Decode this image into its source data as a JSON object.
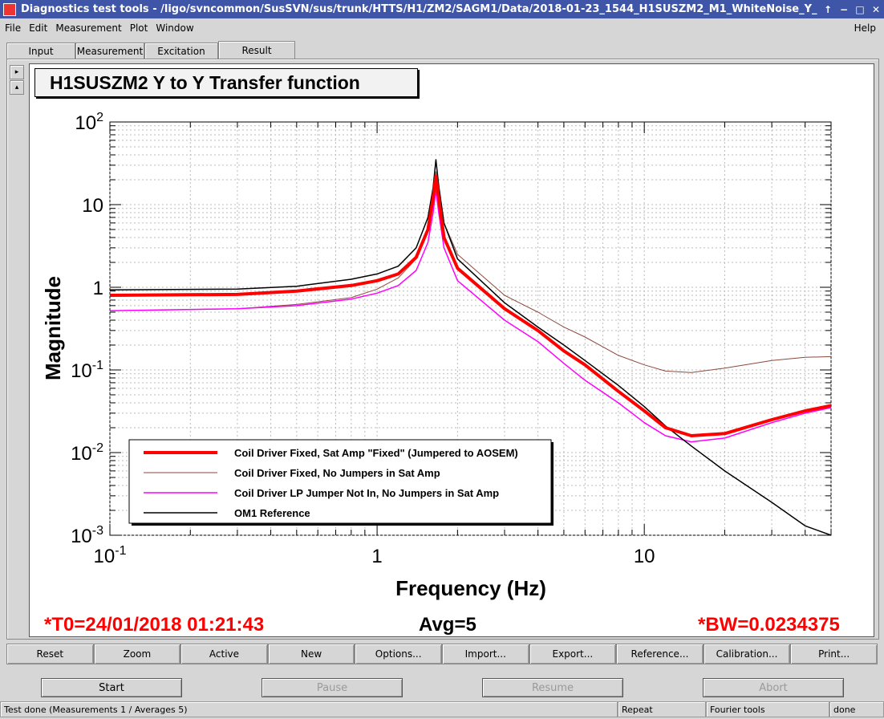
{
  "window": {
    "title": "Diagnostics test tools - /ligo/svncommon/SusSVN/sus/trunk/HTTS/H1/ZM2/SAGM1/Data/2018-01-23_1544_H1SUSZM2_M1_WhiteNoise_Y_",
    "buttons": [
      "↑",
      "−",
      "□",
      "✕"
    ]
  },
  "menu": {
    "file": "File",
    "edit": "Edit",
    "measurement": "Measurement",
    "plot": "Plot",
    "window": "Window",
    "help": "Help"
  },
  "tabs": [
    "Input",
    "Measurement",
    "Excitation",
    "Result"
  ],
  "active_tab": "Result",
  "side_buttons": [
    "▸",
    "▴"
  ],
  "plot": {
    "title": "H1SUSZM2 Y to Y Transfer function"
  },
  "chart_data": {
    "type": "line",
    "title": "H1SUSZM2 Y to Y Transfer function",
    "xlabel": "Frequency (Hz)",
    "ylabel": "Magnitude",
    "x_scale": "log",
    "y_scale": "log",
    "xlim": [
      0.1,
      50
    ],
    "ylim": [
      0.001,
      100
    ],
    "grid": true,
    "legend_position": "bottom-left",
    "x_ticks": [
      {
        "v": 0.1,
        "base": "10",
        "exp": "-1"
      },
      {
        "v": 1,
        "base": "1",
        "exp": ""
      },
      {
        "v": 10,
        "base": "10",
        "exp": ""
      }
    ],
    "y_ticks": [
      {
        "v": 100,
        "base": "10",
        "exp": "2"
      },
      {
        "v": 10,
        "base": "10",
        "exp": ""
      },
      {
        "v": 1,
        "base": "1",
        "exp": ""
      },
      {
        "v": 0.1,
        "base": "10",
        "exp": "-1"
      },
      {
        "v": 0.01,
        "base": "10",
        "exp": "-2"
      },
      {
        "v": 0.001,
        "base": "10",
        "exp": "-3"
      }
    ],
    "series": [
      {
        "name": "Coil Driver Fixed, Sat Amp \"Fixed\" (Jumpered to AOSEM)",
        "color": "#ff0000",
        "width": 4,
        "points": [
          [
            0.1,
            0.8
          ],
          [
            0.3,
            0.82
          ],
          [
            0.5,
            0.9
          ],
          [
            0.8,
            1.05
          ],
          [
            1.0,
            1.2
          ],
          [
            1.2,
            1.45
          ],
          [
            1.4,
            2.3
          ],
          [
            1.55,
            5
          ],
          [
            1.62,
            12
          ],
          [
            1.66,
            22
          ],
          [
            1.7,
            12
          ],
          [
            1.78,
            4
          ],
          [
            2,
            1.7
          ],
          [
            3,
            0.55
          ],
          [
            4,
            0.3
          ],
          [
            5,
            0.17
          ],
          [
            6,
            0.115
          ],
          [
            8,
            0.055
          ],
          [
            10,
            0.032
          ],
          [
            12,
            0.02
          ],
          [
            15,
            0.016
          ],
          [
            20,
            0.017
          ],
          [
            30,
            0.025
          ],
          [
            40,
            0.032
          ],
          [
            50,
            0.037
          ]
        ]
      },
      {
        "name": "Coil Driver Fixed, No Jumpers in Sat Amp",
        "color": "#8b4a3c",
        "width": 1,
        "points": [
          [
            0.1,
            0.52
          ],
          [
            0.3,
            0.55
          ],
          [
            0.5,
            0.62
          ],
          [
            0.8,
            0.75
          ],
          [
            1.0,
            0.95
          ],
          [
            1.2,
            1.3
          ],
          [
            1.4,
            2.2
          ],
          [
            1.55,
            5
          ],
          [
            1.62,
            12
          ],
          [
            1.66,
            25
          ],
          [
            1.7,
            14
          ],
          [
            1.78,
            6
          ],
          [
            2,
            2.5
          ],
          [
            3,
            0.8
          ],
          [
            4,
            0.5
          ],
          [
            5,
            0.33
          ],
          [
            6,
            0.25
          ],
          [
            8,
            0.15
          ],
          [
            10,
            0.115
          ],
          [
            12,
            0.097
          ],
          [
            15,
            0.093
          ],
          [
            20,
            0.105
          ],
          [
            30,
            0.13
          ],
          [
            40,
            0.142
          ],
          [
            50,
            0.145
          ]
        ]
      },
      {
        "name": "Coil Driver LP Jumper Not In, No Jumpers in Sat Amp",
        "color": "#ff00ff",
        "width": 1.5,
        "points": [
          [
            0.1,
            0.52
          ],
          [
            0.3,
            0.55
          ],
          [
            0.5,
            0.6
          ],
          [
            0.8,
            0.72
          ],
          [
            1.0,
            0.85
          ],
          [
            1.2,
            1.05
          ],
          [
            1.4,
            1.6
          ],
          [
            1.55,
            3.5
          ],
          [
            1.62,
            8
          ],
          [
            1.66,
            15
          ],
          [
            1.7,
            8
          ],
          [
            1.78,
            3
          ],
          [
            2,
            1.2
          ],
          [
            3,
            0.4
          ],
          [
            4,
            0.22
          ],
          [
            5,
            0.12
          ],
          [
            6,
            0.075
          ],
          [
            8,
            0.04
          ],
          [
            10,
            0.023
          ],
          [
            12,
            0.016
          ],
          [
            15,
            0.0135
          ],
          [
            20,
            0.015
          ],
          [
            30,
            0.023
          ],
          [
            40,
            0.03
          ],
          [
            50,
            0.035
          ]
        ]
      },
      {
        "name": "OM1 Reference",
        "color": "#000000",
        "width": 1.5,
        "points": [
          [
            0.1,
            0.93
          ],
          [
            0.3,
            0.95
          ],
          [
            0.5,
            1.03
          ],
          [
            0.8,
            1.25
          ],
          [
            1.0,
            1.45
          ],
          [
            1.2,
            1.8
          ],
          [
            1.4,
            3
          ],
          [
            1.55,
            7
          ],
          [
            1.62,
            16
          ],
          [
            1.66,
            35
          ],
          [
            1.7,
            17
          ],
          [
            1.78,
            6
          ],
          [
            2,
            2.2
          ],
          [
            3,
            0.65
          ],
          [
            4,
            0.33
          ],
          [
            5,
            0.2
          ],
          [
            6,
            0.13
          ],
          [
            8,
            0.065
          ],
          [
            10,
            0.036
          ],
          [
            12,
            0.021
          ],
          [
            15,
            0.012
          ],
          [
            20,
            0.006
          ],
          [
            30,
            0.0025
          ],
          [
            40,
            0.0013
          ],
          [
            50,
            0.001
          ]
        ]
      }
    ]
  },
  "info": {
    "t0": "*T0=24/01/2018 01:21:43",
    "avg": "Avg=5",
    "bw": "*BW=0.0234375"
  },
  "toolbar": [
    "Reset",
    "Zoom",
    "Active",
    "New",
    "Options...",
    "Import...",
    "Export...",
    "Reference...",
    "Calibration...",
    "Print..."
  ],
  "controls": {
    "start": "Start",
    "pause": "Pause",
    "resume": "Resume",
    "abort": "Abort"
  },
  "status": {
    "message": "Test done (Measurements 1 / Averages 5)",
    "mode": "Repeat",
    "tools": "Fourier tools",
    "state": "done"
  }
}
